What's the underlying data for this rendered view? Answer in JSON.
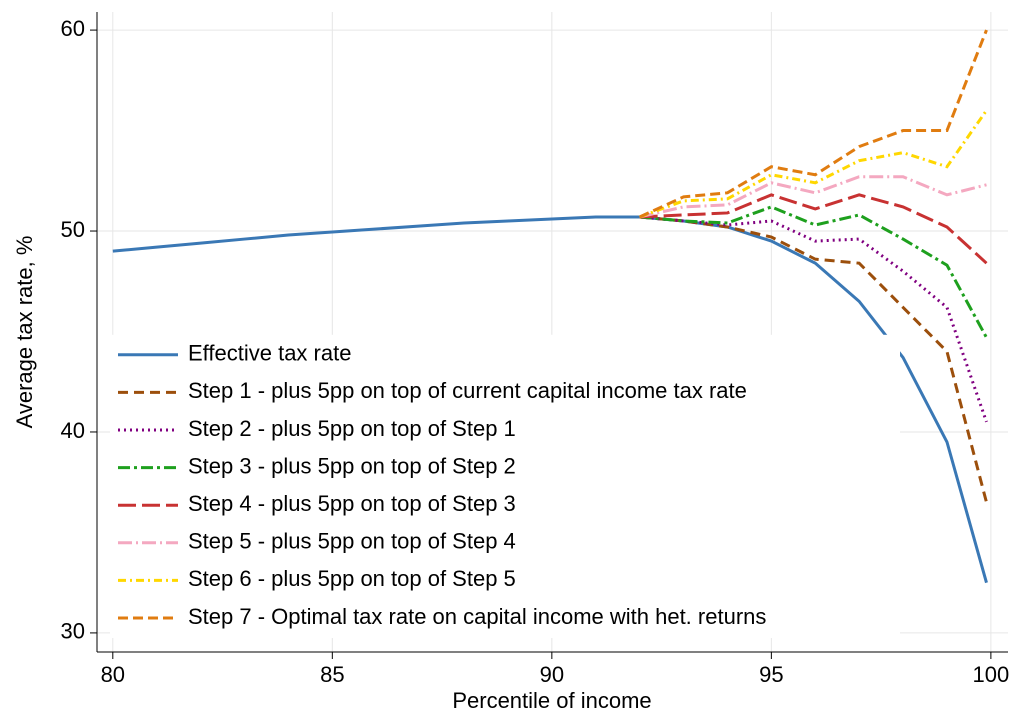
{
  "chart_data": {
    "type": "line",
    "xlabel": "Percentile of income",
    "ylabel": "Average tax rate, %",
    "x": [
      80,
      81,
      82,
      83,
      84,
      85,
      86,
      87,
      88,
      89,
      90,
      91,
      92,
      93,
      94,
      95,
      96,
      97,
      98,
      99,
      99.9
    ],
    "xlim": [
      79.64,
      100.39
    ],
    "xticks": [
      80,
      85,
      90,
      95,
      100
    ],
    "ylim": [
      29.05,
      60.9
    ],
    "yticks": [
      30,
      40,
      50,
      60
    ],
    "grid": true,
    "legend": "lower left",
    "series": [
      {
        "name": "Effective tax rate",
        "color": "#3a78b5",
        "dash": "none",
        "values": [
          49.0,
          49.2,
          49.4,
          49.6,
          49.8,
          49.95,
          50.1,
          50.25,
          50.4,
          50.5,
          50.6,
          50.7,
          50.7,
          50.5,
          50.2,
          49.5,
          48.4,
          46.5,
          43.7,
          39.5,
          32.5
        ]
      },
      {
        "name": "Step 1 - plus 5pp on top of current capital income tax rate",
        "color": "#9c4f0c",
        "dash": "10,6",
        "values": [
          null,
          null,
          null,
          null,
          null,
          null,
          null,
          null,
          null,
          null,
          null,
          null,
          50.7,
          50.5,
          50.2,
          49.7,
          48.6,
          48.4,
          46.2,
          44.0,
          36.5
        ]
      },
      {
        "name": "Step 2 - plus 5pp on top of Step 1",
        "color": "#800080",
        "dash": "2,4",
        "values": [
          null,
          null,
          null,
          null,
          null,
          null,
          null,
          null,
          null,
          null,
          null,
          null,
          50.7,
          50.5,
          50.3,
          50.5,
          49.5,
          49.6,
          48.0,
          46.2,
          40.5
        ]
      },
      {
        "name": "Step 3 - plus 5pp on top of Step 2",
        "color": "#1ea01e",
        "dash": "12,4,3,4",
        "values": [
          null,
          null,
          null,
          null,
          null,
          null,
          null,
          null,
          null,
          null,
          null,
          null,
          50.7,
          50.5,
          50.4,
          51.2,
          50.3,
          50.8,
          49.6,
          48.3,
          44.7
        ]
      },
      {
        "name": "Step 4 - plus 5pp on top of Step 3",
        "color": "#c83232",
        "dash": "18,6",
        "values": [
          null,
          null,
          null,
          null,
          null,
          null,
          null,
          null,
          null,
          null,
          null,
          null,
          50.7,
          50.8,
          50.9,
          51.8,
          51.1,
          51.8,
          51.2,
          50.2,
          48.4
        ]
      },
      {
        "name": "Step 5 - plus 5pp on top of Step 4",
        "color": "#f4a8c0",
        "dash": "14,4,2,4",
        "values": [
          null,
          null,
          null,
          null,
          null,
          null,
          null,
          null,
          null,
          null,
          null,
          null,
          50.7,
          51.2,
          51.3,
          52.4,
          51.9,
          52.7,
          52.7,
          51.8,
          52.3
        ]
      },
      {
        "name": "Step 6 - plus 5pp on top of Step 5",
        "color": "#ffd700",
        "dash": "8,4,2,4",
        "values": [
          null,
          null,
          null,
          null,
          null,
          null,
          null,
          null,
          null,
          null,
          null,
          null,
          50.7,
          51.5,
          51.6,
          52.8,
          52.4,
          53.5,
          53.9,
          53.2,
          56.0
        ]
      },
      {
        "name": "Step 7 - Optimal tax rate on capital income with het. returns",
        "color": "#e07c10",
        "dash": "10,5",
        "values": [
          null,
          null,
          null,
          null,
          null,
          null,
          null,
          null,
          null,
          null,
          null,
          null,
          50.7,
          51.7,
          51.9,
          53.2,
          52.8,
          54.2,
          55.0,
          55.0,
          60.0
        ]
      }
    ]
  }
}
